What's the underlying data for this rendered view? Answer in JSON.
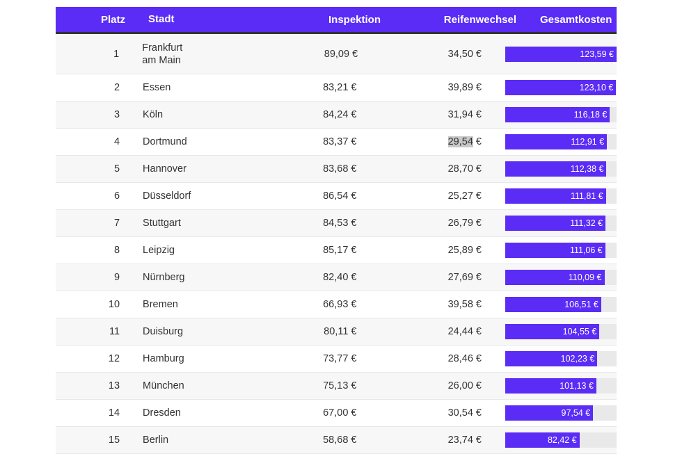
{
  "headers": {
    "rank": "Platz",
    "city": "Stadt",
    "inspection": "Inspektion",
    "tires": "Reifenwechsel",
    "total": "Gesamtkosten"
  },
  "accent": "#5a2cf5",
  "max_total": 123.59,
  "rows": [
    {
      "rank": "1",
      "city": "Frankfurt am Main",
      "inspection": "89,09 €",
      "tires": "34,50 €",
      "total": "123,59 €",
      "value": 123.59
    },
    {
      "rank": "2",
      "city": "Essen",
      "inspection": "83,21 €",
      "tires": "39,89 €",
      "total": "123,10 €",
      "value": 123.1
    },
    {
      "rank": "3",
      "city": "Köln",
      "inspection": "84,24 €",
      "tires": "31,94 €",
      "total": "116,18 €",
      "value": 116.18
    },
    {
      "rank": "4",
      "city": "Dortmund",
      "inspection": "83,37 €",
      "tires": "29,54 €",
      "total": "112,91 €",
      "value": 112.91,
      "selected": "29,54",
      "rest": " €"
    },
    {
      "rank": "5",
      "city": "Hannover",
      "inspection": "83,68 €",
      "tires": "28,70 €",
      "total": "112,38 €",
      "value": 112.38
    },
    {
      "rank": "6",
      "city": "Düsseldorf",
      "inspection": "86,54 €",
      "tires": "25,27 €",
      "total": "111,81 €",
      "value": 111.81
    },
    {
      "rank": "7",
      "city": "Stuttgart",
      "inspection": "84,53 €",
      "tires": "26,79 €",
      "total": "111,32 €",
      "value": 111.32
    },
    {
      "rank": "8",
      "city": "Leipzig",
      "inspection": "85,17 €",
      "tires": "25,89 €",
      "total": "111,06 €",
      "value": 111.06
    },
    {
      "rank": "9",
      "city": "Nürnberg",
      "inspection": "82,40 €",
      "tires": "27,69 €",
      "total": "110,09 €",
      "value": 110.09
    },
    {
      "rank": "10",
      "city": "Bremen",
      "inspection": "66,93 €",
      "tires": "39,58 €",
      "total": "106,51 €",
      "value": 106.51
    },
    {
      "rank": "11",
      "city": "Duisburg",
      "inspection": "80,11 €",
      "tires": "24,44 €",
      "total": "104,55 €",
      "value": 104.55
    },
    {
      "rank": "12",
      "city": "Hamburg",
      "inspection": "73,77 €",
      "tires": "28,46 €",
      "total": "102,23 €",
      "value": 102.23
    },
    {
      "rank": "13",
      "city": "München",
      "inspection": "75,13 €",
      "tires": "26,00 €",
      "total": "101,13 €",
      "value": 101.13
    },
    {
      "rank": "14",
      "city": "Dresden",
      "inspection": "67,00 €",
      "tires": "30,54 €",
      "total": "97,54 €",
      "value": 97.54
    },
    {
      "rank": "15",
      "city": "Berlin",
      "inspection": "58,68 €",
      "tires": "23,74 €",
      "total": "82,42 €",
      "value": 82.42
    }
  ]
}
